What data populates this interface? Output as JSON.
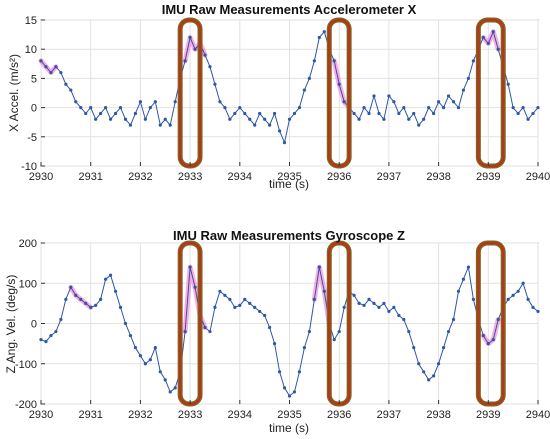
{
  "colors": {
    "series": "#2e57a6",
    "highlight": "#ff66cc",
    "box_outline": "#b5361d",
    "box_fill": "#7a6a1e",
    "grid": "#e2e2e2",
    "axis": "#333333"
  },
  "chart_data": [
    {
      "type": "line",
      "title": "IMU Raw Measurements Accelerometer X",
      "xlabel": "time (s)",
      "ylabel": "X Accel. (m/s²)",
      "xlim": [
        2930,
        2940
      ],
      "ylim": [
        -10,
        15
      ],
      "xticks": [
        2930,
        2931,
        2932,
        2933,
        2934,
        2935,
        2936,
        2937,
        2938,
        2939,
        2940
      ],
      "yticks": [
        -10,
        -5,
        0,
        5,
        10,
        15
      ],
      "xtick_labels": [
        "2930",
        "2931",
        "2932",
        "2933",
        "2934",
        "2935",
        "2936",
        "2937",
        "2938",
        "2939",
        "2940"
      ],
      "ytick_labels": [
        "-10",
        "-5",
        "0",
        "5",
        "10",
        "15"
      ],
      "grid": true,
      "series": [
        {
          "x": [
            2930.0,
            2930.1,
            2930.2,
            2930.3,
            2930.4,
            2930.5,
            2930.6,
            2930.7,
            2930.8,
            2930.9,
            2931.0,
            2931.1,
            2931.2,
            2931.3,
            2931.4,
            2931.5,
            2931.6,
            2931.7,
            2931.8,
            2931.9,
            2932.0,
            2932.1,
            2932.2,
            2932.3,
            2932.4,
            2932.5,
            2932.6,
            2932.7,
            2932.8,
            2932.9,
            2933.0,
            2933.1,
            2933.2,
            2933.3,
            2933.4,
            2933.5,
            2933.6,
            2933.7,
            2933.8,
            2933.9,
            2934.0,
            2934.1,
            2934.2,
            2934.3,
            2934.4,
            2934.5,
            2934.6,
            2934.7,
            2934.8,
            2934.9,
            2935.0,
            2935.1,
            2935.2,
            2935.3,
            2935.4,
            2935.5,
            2935.6,
            2935.7,
            2935.8,
            2935.9,
            2936.0,
            2936.1,
            2936.2,
            2936.3,
            2936.4,
            2936.5,
            2936.6,
            2936.7,
            2936.8,
            2936.9,
            2937.0,
            2937.1,
            2937.2,
            2937.3,
            2937.4,
            2937.5,
            2937.6,
            2937.7,
            2937.8,
            2937.9,
            2938.0,
            2938.1,
            2938.2,
            2938.3,
            2938.4,
            2938.5,
            2938.6,
            2938.7,
            2938.8,
            2938.9,
            2939.0,
            2939.1,
            2939.2,
            2939.3,
            2939.4,
            2939.5,
            2939.6,
            2939.7,
            2939.8,
            2939.9,
            2940.0
          ],
          "y": [
            8,
            7,
            6,
            7,
            6,
            4,
            3,
            1,
            0,
            -1,
            0,
            -2,
            -1,
            0,
            -2,
            -1,
            0,
            -2,
            -3,
            -1,
            1,
            -2,
            0,
            1,
            -3,
            -2,
            -3,
            1,
            5,
            8,
            12,
            10,
            11,
            9,
            7,
            4,
            1,
            0,
            -2,
            -1,
            0,
            -1,
            -2,
            -3,
            -1,
            -2,
            -3,
            -1,
            -4,
            -6,
            -2,
            -1,
            0,
            3,
            5,
            8,
            12,
            13,
            10,
            8,
            4,
            1,
            0,
            -1,
            -2,
            0,
            -1,
            2,
            -1,
            -2,
            2,
            1,
            -1,
            0,
            -2,
            -1,
            -3,
            -2,
            0,
            -1,
            1,
            0,
            2,
            1,
            0,
            3,
            5,
            8,
            10,
            12,
            11,
            13,
            10,
            7,
            4,
            0,
            -1,
            0,
            -2,
            -1,
            0
          ]
        }
      ],
      "highlight_ranges": [
        [
          2930.0,
          2930.3
        ],
        [
          2932.9,
          2933.3
        ],
        [
          2935.9,
          2936.2
        ],
        [
          2938.9,
          2939.2
        ]
      ],
      "annotations": [
        {
          "shape": "rounded-rectangle",
          "x": [
            2932.8,
            2933.2
          ],
          "y": [
            -10,
            15
          ]
        },
        {
          "shape": "rounded-rectangle",
          "x": [
            2935.8,
            2936.2
          ],
          "y": [
            -10,
            15
          ]
        },
        {
          "shape": "rounded-rectangle",
          "x": [
            2938.8,
            2939.3
          ],
          "y": [
            -10,
            15
          ]
        }
      ]
    },
    {
      "type": "line",
      "title": "IMU Raw Measurements Gyroscope Z",
      "xlabel": "time (s)",
      "ylabel": "Z Ang. Vel. (deg/s)",
      "xlim": [
        2930,
        2940
      ],
      "ylim": [
        -200,
        200
      ],
      "xticks": [
        2930,
        2931,
        2932,
        2933,
        2934,
        2935,
        2936,
        2937,
        2938,
        2939,
        2940
      ],
      "yticks": [
        -200,
        -100,
        0,
        100,
        200
      ],
      "xtick_labels": [
        "2930",
        "2931",
        "2932",
        "2933",
        "2934",
        "2935",
        "2936",
        "2937",
        "2938",
        "2939",
        "2940"
      ],
      "ytick_labels": [
        "-200",
        "-100",
        "0",
        "100",
        "200"
      ],
      "grid": true,
      "series": [
        {
          "x": [
            2930.0,
            2930.1,
            2930.2,
            2930.3,
            2930.4,
            2930.5,
            2930.6,
            2930.7,
            2930.8,
            2930.9,
            2931.0,
            2931.1,
            2931.2,
            2931.3,
            2931.4,
            2931.5,
            2931.6,
            2931.7,
            2931.8,
            2931.9,
            2932.0,
            2932.1,
            2932.2,
            2932.3,
            2932.4,
            2932.5,
            2932.6,
            2932.7,
            2932.8,
            2932.9,
            2933.0,
            2933.1,
            2933.2,
            2933.3,
            2933.4,
            2933.5,
            2933.6,
            2933.7,
            2933.8,
            2933.9,
            2934.0,
            2934.1,
            2934.2,
            2934.3,
            2934.4,
            2934.5,
            2934.6,
            2934.7,
            2934.8,
            2934.9,
            2935.0,
            2935.1,
            2935.2,
            2935.3,
            2935.4,
            2935.5,
            2935.6,
            2935.7,
            2935.8,
            2935.9,
            2936.0,
            2936.1,
            2936.2,
            2936.3,
            2936.4,
            2936.5,
            2936.6,
            2936.7,
            2936.8,
            2936.9,
            2937.0,
            2937.1,
            2937.2,
            2937.3,
            2937.4,
            2937.5,
            2937.6,
            2937.7,
            2937.8,
            2937.9,
            2938.0,
            2938.1,
            2938.2,
            2938.3,
            2938.4,
            2938.5,
            2938.6,
            2938.7,
            2938.8,
            2938.9,
            2939.0,
            2939.1,
            2939.2,
            2939.3,
            2939.4,
            2939.5,
            2939.6,
            2939.7,
            2939.8,
            2939.9,
            2940.0
          ],
          "y": [
            -40,
            -45,
            -30,
            -20,
            10,
            60,
            90,
            70,
            60,
            50,
            40,
            45,
            60,
            110,
            120,
            80,
            40,
            0,
            -30,
            -60,
            -80,
            -100,
            -90,
            -60,
            -120,
            -140,
            -170,
            -160,
            -120,
            -20,
            140,
            90,
            20,
            -10,
            -20,
            40,
            80,
            70,
            60,
            40,
            45,
            60,
            50,
            40,
            30,
            20,
            -10,
            -50,
            -120,
            -160,
            -180,
            -170,
            -120,
            -60,
            -20,
            60,
            140,
            80,
            0,
            -40,
            -20,
            40,
            80,
            70,
            50,
            45,
            60,
            50,
            40,
            50,
            30,
            40,
            20,
            10,
            -20,
            -60,
            -100,
            -120,
            -140,
            -130,
            -100,
            -60,
            -20,
            10,
            80,
            110,
            140,
            60,
            10,
            -30,
            -50,
            -40,
            10,
            40,
            60,
            70,
            80,
            100,
            60,
            40,
            30
          ]
        }
      ],
      "highlight_ranges": [
        [
          2930.6,
          2931.0
        ],
        [
          2932.9,
          2933.3
        ],
        [
          2935.5,
          2935.8
        ],
        [
          2938.9,
          2939.2
        ]
      ],
      "annotations": [
        {
          "shape": "rounded-rectangle",
          "x": [
            2932.8,
            2933.2
          ],
          "y": [
            -200,
            200
          ]
        },
        {
          "shape": "rounded-rectangle",
          "x": [
            2935.8,
            2936.2
          ],
          "y": [
            -200,
            200
          ]
        },
        {
          "shape": "rounded-rectangle",
          "x": [
            2938.8,
            2939.3
          ],
          "y": [
            -200,
            200
          ]
        }
      ]
    }
  ]
}
